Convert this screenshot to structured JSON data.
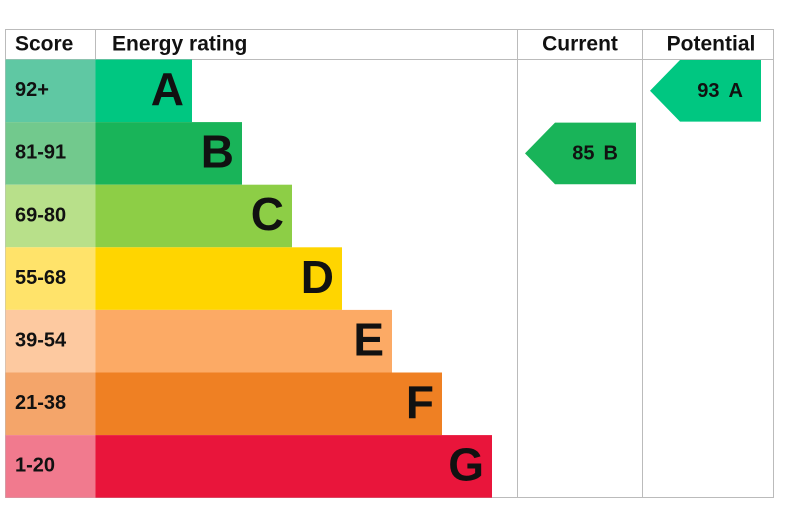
{
  "header": {
    "score": "Score",
    "rating": "Energy rating",
    "current": "Current",
    "potential": "Potential"
  },
  "bands": [
    {
      "score": "92+",
      "letter": "A",
      "color": "#00c781",
      "score_color": "#5fc8a3"
    },
    {
      "score": "81-91",
      "letter": "B",
      "color": "#19b459",
      "score_color": "#72c98d"
    },
    {
      "score": "69-80",
      "letter": "C",
      "color": "#8dce46",
      "score_color": "#b8e08a"
    },
    {
      "score": "55-68",
      "letter": "D",
      "color": "#ffd500",
      "score_color": "#ffe36a"
    },
    {
      "score": "39-54",
      "letter": "E",
      "color": "#fcaa65",
      "score_color": "#fdc9a0"
    },
    {
      "score": "21-38",
      "letter": "F",
      "color": "#ef8023",
      "score_color": "#f4a56a"
    },
    {
      "score": "1-20",
      "letter": "G",
      "color": "#e9153b",
      "score_color": "#f17a8e"
    }
  ],
  "current": {
    "value": 85,
    "letter": "B"
  },
  "potential": {
    "value": 93,
    "letter": "A"
  }
}
